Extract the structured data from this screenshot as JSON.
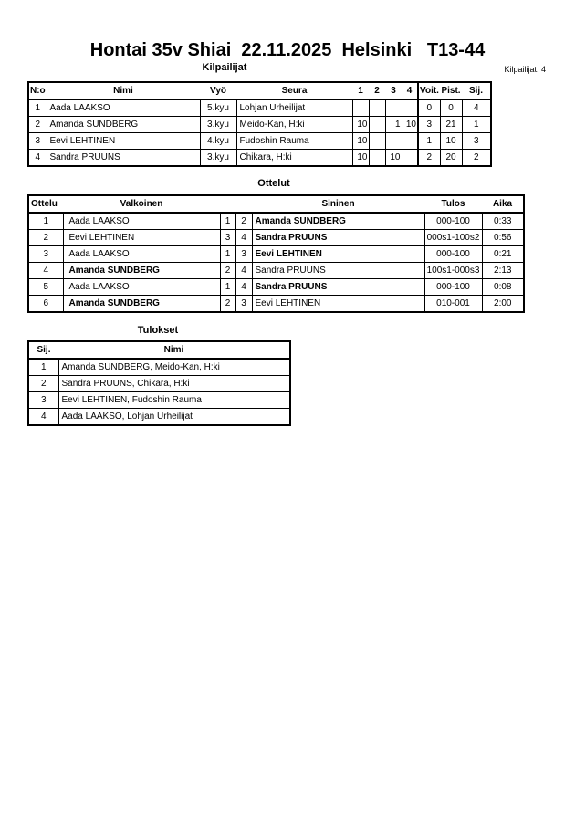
{
  "header": {
    "title": "Hontai 35v Shiai  22.11.2025  Helsinki   T13-44",
    "competitors_section": "Kilpailijat",
    "competitor_count": "Kilpailijat: 4"
  },
  "competitors": {
    "columns": [
      "N:o",
      "Nimi",
      "Vyö",
      "Seura",
      "1",
      "2",
      "3",
      "4",
      "Voit.",
      "Pist.",
      "Sij."
    ],
    "rows": [
      {
        "no": "1",
        "name": "Aada LAAKSO",
        "belt": "5.kyu",
        "club": "Lohjan Urheilijat",
        "scores": [
          "",
          "",
          "",
          ""
        ],
        "wins": "0",
        "points": "0",
        "rank": "4"
      },
      {
        "no": "2",
        "name": "Amanda SUNDBERG",
        "belt": "3.kyu",
        "club": "Meido-Kan, H:ki",
        "scores": [
          "10",
          "",
          "1",
          "10"
        ],
        "wins": "3",
        "points": "21",
        "rank": "1"
      },
      {
        "no": "3",
        "name": "Eevi LEHTINEN",
        "belt": "4.kyu",
        "club": "Fudoshin Rauma",
        "scores": [
          "10",
          "",
          "",
          ""
        ],
        "wins": "1",
        "points": "10",
        "rank": "3"
      },
      {
        "no": "4",
        "name": "Sandra PRUUNS",
        "belt": "3.kyu",
        "club": "Chikara, H:ki",
        "scores": [
          "10",
          "",
          "10",
          ""
        ],
        "wins": "2",
        "points": "20",
        "rank": "2"
      }
    ]
  },
  "matches": {
    "section": "Ottelut",
    "columns": [
      "Ottelu",
      "Valkoinen",
      "Sininen",
      "Tulos",
      "Aika"
    ],
    "rows": [
      {
        "no": "1",
        "white": "Aada LAAKSO",
        "white_no": "1",
        "blue_no": "2",
        "blue": "Amanda SUNDBERG",
        "result": "000-100",
        "time": "0:33",
        "winner": "blue"
      },
      {
        "no": "2",
        "white": "Eevi LEHTINEN",
        "white_no": "3",
        "blue_no": "4",
        "blue": "Sandra PRUUNS",
        "result": "000s1-100s2",
        "time": "0:56",
        "winner": "blue"
      },
      {
        "no": "3",
        "white": "Aada LAAKSO",
        "white_no": "1",
        "blue_no": "3",
        "blue": "Eevi LEHTINEN",
        "result": "000-100",
        "time": "0:21",
        "winner": "blue"
      },
      {
        "no": "4",
        "white": "Amanda SUNDBERG",
        "white_no": "2",
        "blue_no": "4",
        "blue": "Sandra PRUUNS",
        "result": "100s1-000s3",
        "time": "2:13",
        "winner": "white"
      },
      {
        "no": "5",
        "white": "Aada LAAKSO",
        "white_no": "1",
        "blue_no": "4",
        "blue": "Sandra PRUUNS",
        "result": "000-100",
        "time": "0:08",
        "winner": "blue"
      },
      {
        "no": "6",
        "white": "Amanda SUNDBERG",
        "white_no": "2",
        "blue_no": "3",
        "blue": "Eevi LEHTINEN",
        "result": "010-001",
        "time": "2:00",
        "winner": "white"
      }
    ]
  },
  "results": {
    "section": "Tulokset",
    "columns": [
      "Sij.",
      "Nimi"
    ],
    "rows": [
      {
        "rank": "1",
        "name": "Amanda SUNDBERG, Meido-Kan, H:ki"
      },
      {
        "rank": "2",
        "name": "Sandra PRUUNS, Chikara, H:ki"
      },
      {
        "rank": "3",
        "name": "Eevi LEHTINEN, Fudoshin Rauma"
      },
      {
        "rank": "4",
        "name": "Aada LAAKSO, Lohjan Urheilijat"
      }
    ]
  }
}
